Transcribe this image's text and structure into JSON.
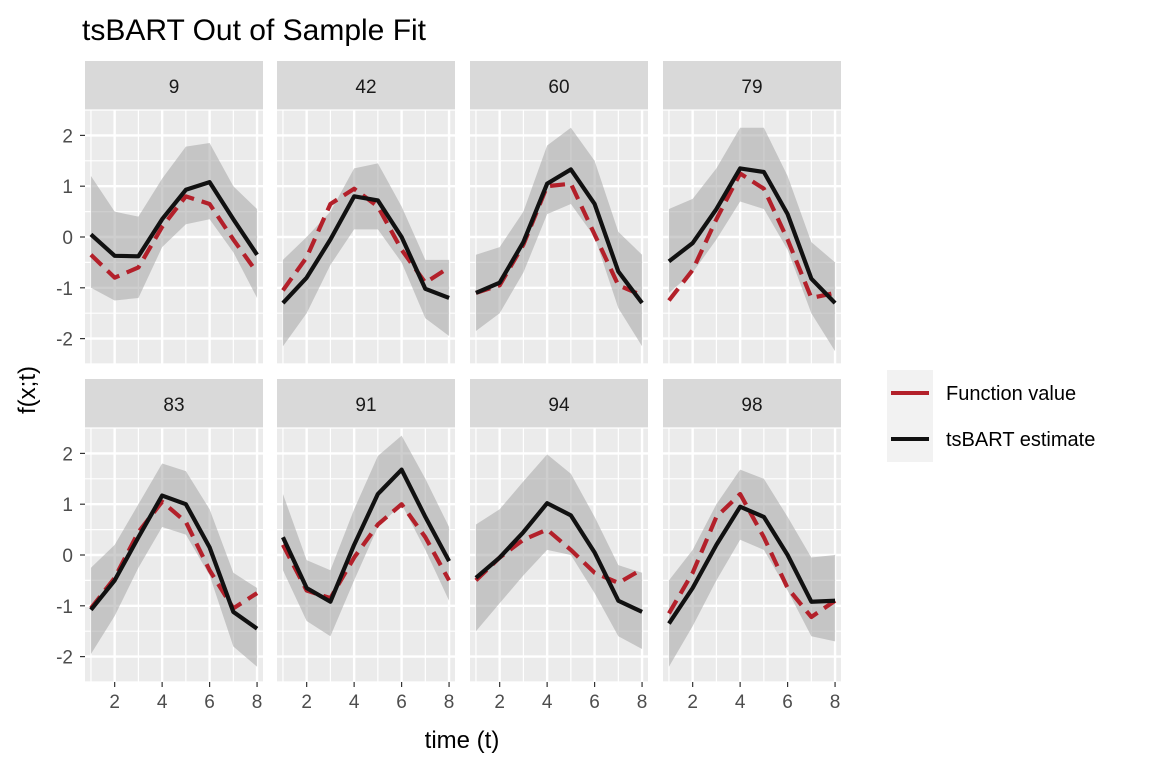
{
  "chart_data": {
    "type": "line",
    "title": "tsBART Out of Sample Fit",
    "xlabel": "time (t)",
    "ylabel": "f(x;t)",
    "xlim": [
      0.75,
      8.25
    ],
    "ylim": [
      -2.5,
      2.5
    ],
    "x_ticks": [
      2,
      4,
      6,
      8
    ],
    "y_ticks": [
      -2,
      -1,
      0,
      1,
      2
    ],
    "x": [
      1,
      2,
      3,
      4,
      5,
      6,
      7,
      8
    ],
    "grid": true,
    "legend_position": "right",
    "series_names": [
      "Function value",
      "tsBART estimate"
    ],
    "colors": {
      "function_value": "#b3202a",
      "estimate": "#111111",
      "band": "#a6a6a6",
      "panel_bg": "#ebebeb",
      "strip_bg": "#d9d9d9"
    },
    "panels": [
      {
        "label": "9",
        "function_value": [
          -0.35,
          -0.8,
          -0.6,
          0.2,
          0.8,
          0.65,
          -0.05,
          -0.7
        ],
        "estimate": [
          0.05,
          -0.37,
          -0.38,
          0.35,
          0.93,
          1.08,
          0.35,
          -0.35
        ],
        "lower": [
          -1.0,
          -1.25,
          -1.2,
          -0.2,
          0.25,
          0.35,
          -0.3,
          -1.2
        ],
        "upper": [
          1.2,
          0.5,
          0.4,
          1.15,
          1.78,
          1.85,
          1.0,
          0.55
        ]
      },
      {
        "label": "42",
        "function_value": [
          -1.05,
          -0.4,
          0.65,
          0.95,
          0.6,
          -0.25,
          -0.9,
          -0.6
        ],
        "estimate": [
          -1.3,
          -0.8,
          -0.05,
          0.8,
          0.72,
          0.0,
          -1.02,
          -1.2
        ],
        "lower": [
          -2.15,
          -1.5,
          -0.55,
          0.15,
          0.15,
          -0.5,
          -1.6,
          -1.95
        ],
        "upper": [
          -0.45,
          0.0,
          0.5,
          1.35,
          1.45,
          0.6,
          -0.45,
          -0.45
        ]
      },
      {
        "label": "60",
        "function_value": [
          -1.1,
          -0.95,
          -0.15,
          1.0,
          1.05,
          0.05,
          -0.95,
          -1.15
        ],
        "estimate": [
          -1.1,
          -0.9,
          -0.1,
          1.05,
          1.33,
          0.65,
          -0.68,
          -1.3
        ],
        "lower": [
          -1.85,
          -1.5,
          -0.7,
          0.45,
          0.65,
          0.0,
          -1.4,
          -2.15
        ],
        "upper": [
          -0.35,
          -0.2,
          0.5,
          1.8,
          2.15,
          1.5,
          0.1,
          -0.35
        ]
      },
      {
        "label": "79",
        "function_value": [
          -1.25,
          -0.65,
          0.35,
          1.25,
          0.95,
          -0.05,
          -1.2,
          -1.1
        ],
        "estimate": [
          -0.48,
          -0.12,
          0.55,
          1.35,
          1.28,
          0.45,
          -0.82,
          -1.3
        ],
        "lower": [
          -1.1,
          -0.7,
          -0.05,
          0.7,
          0.55,
          -0.25,
          -1.5,
          -2.25
        ],
        "upper": [
          0.55,
          0.75,
          1.35,
          2.15,
          2.15,
          1.2,
          -0.1,
          -0.5
        ]
      },
      {
        "label": "83",
        "function_value": [
          -1.05,
          -0.45,
          0.45,
          1.05,
          0.65,
          -0.3,
          -1.05,
          -0.75
        ],
        "estimate": [
          -1.08,
          -0.5,
          0.35,
          1.17,
          1.0,
          0.15,
          -1.12,
          -1.45
        ],
        "lower": [
          -1.95,
          -1.2,
          -0.25,
          0.55,
          0.4,
          -0.4,
          -1.8,
          -2.2
        ],
        "upper": [
          -0.25,
          0.2,
          1.0,
          1.8,
          1.65,
          0.9,
          -0.35,
          -0.65
        ]
      },
      {
        "label": "91",
        "function_value": [
          0.2,
          -0.7,
          -0.85,
          -0.05,
          0.6,
          1.0,
          0.35,
          -0.5
        ],
        "estimate": [
          0.35,
          -0.65,
          -0.92,
          0.2,
          1.2,
          1.68,
          0.75,
          -0.12
        ],
        "lower": [
          -0.3,
          -1.3,
          -1.6,
          -0.5,
          0.55,
          1.0,
          0.1,
          -0.9
        ],
        "upper": [
          1.2,
          -0.1,
          -0.3,
          0.9,
          1.95,
          2.35,
          1.5,
          0.55
        ]
      },
      {
        "label": "94",
        "function_value": [
          -0.5,
          -0.05,
          0.3,
          0.5,
          0.1,
          -0.35,
          -0.55,
          -0.28
        ],
        "estimate": [
          -0.45,
          -0.05,
          0.45,
          1.02,
          0.78,
          0.05,
          -0.9,
          -1.12
        ],
        "lower": [
          -1.5,
          -0.95,
          -0.4,
          0.1,
          0.0,
          -0.75,
          -1.6,
          -1.85
        ],
        "upper": [
          0.6,
          0.9,
          1.45,
          1.98,
          1.6,
          0.75,
          -0.2,
          -0.35
        ]
      },
      {
        "label": "98",
        "function_value": [
          -1.15,
          -0.35,
          0.75,
          1.2,
          0.35,
          -0.65,
          -1.22,
          -0.9
        ],
        "estimate": [
          -1.35,
          -0.65,
          0.2,
          0.95,
          0.75,
          0.0,
          -0.92,
          -0.9
        ],
        "lower": [
          -2.2,
          -1.4,
          -0.5,
          0.3,
          0.1,
          -0.7,
          -1.6,
          -1.7
        ],
        "upper": [
          -0.5,
          0.1,
          1.0,
          1.68,
          1.5,
          0.75,
          -0.05,
          0.0
        ]
      }
    ]
  }
}
